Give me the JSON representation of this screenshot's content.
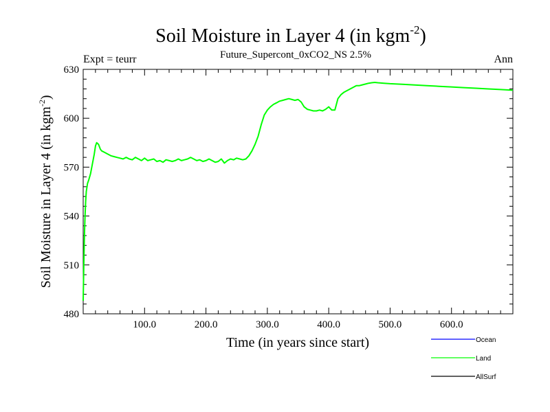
{
  "chart_data": {
    "type": "line",
    "title_main": "Soil Moisture in Layer 4 (in kgm",
    "title_sup": "-2",
    "title_close": ")",
    "subtitle": "Future_Supercont_0xCO2_NS 2.5%",
    "left_label": "Expt = teurr",
    "right_label": "Ann",
    "xlabel": "Time (in years since start)",
    "ylabel_main": "Soil Moisture in Layer 4 (in kgm",
    "ylabel_sup": "-2",
    "ylabel_close": ")",
    "xlim": [
      0,
      700
    ],
    "ylim": [
      480,
      630
    ],
    "x_ticks": [
      100,
      200,
      300,
      400,
      500,
      600
    ],
    "x_tick_labels": [
      "100.0",
      "200.0",
      "300.0",
      "400.0",
      "500.0",
      "600.0"
    ],
    "y_ticks": [
      480,
      510,
      540,
      570,
      600,
      630
    ],
    "y_tick_labels": [
      "480",
      "510",
      "540",
      "570",
      "600",
      "630"
    ],
    "grid": false,
    "legend_position": "bottom-right, below plot",
    "legend": [
      {
        "name": "Ocean",
        "color": "#0000ff"
      },
      {
        "name": "Land",
        "color": "#00ff00"
      },
      {
        "name": "AllSurf",
        "color": "#000000"
      }
    ],
    "series": [
      {
        "name": "Land",
        "color": "#00ff00",
        "x": [
          0,
          1,
          2,
          3,
          4,
          5,
          7,
          9,
          12,
          15,
          18,
          20,
          22,
          25,
          28,
          30,
          35,
          40,
          45,
          50,
          55,
          60,
          65,
          70,
          75,
          80,
          85,
          90,
          95,
          100,
          105,
          110,
          115,
          120,
          125,
          130,
          135,
          140,
          145,
          150,
          155,
          160,
          165,
          170,
          175,
          180,
          185,
          190,
          195,
          200,
          205,
          210,
          215,
          220,
          225,
          230,
          235,
          240,
          245,
          250,
          255,
          260,
          265,
          270,
          275,
          280,
          285,
          290,
          295,
          300,
          305,
          310,
          315,
          320,
          325,
          330,
          335,
          340,
          345,
          350,
          355,
          360,
          365,
          370,
          375,
          380,
          385,
          390,
          395,
          400,
          405,
          410,
          415,
          420,
          425,
          430,
          435,
          440,
          445,
          450,
          455,
          460,
          465,
          470,
          475,
          480,
          490,
          500,
          520,
          540,
          560,
          580,
          600,
          620,
          640,
          660,
          680,
          700
        ],
        "values": [
          488,
          510,
          528,
          540,
          549,
          555,
          560,
          562,
          566,
          572,
          578,
          583,
          585,
          584,
          581,
          580,
          579,
          578,
          577,
          576.5,
          576,
          575.5,
          575,
          576,
          575,
          574.5,
          576,
          575,
          574,
          575.5,
          574,
          574.5,
          575,
          573.5,
          574,
          573,
          574.5,
          574,
          573.5,
          574,
          575,
          574,
          574.5,
          575,
          576,
          575,
          574,
          574.5,
          573.5,
          574,
          575,
          574,
          573,
          573.5,
          575,
          572.5,
          574,
          575,
          574.5,
          575.5,
          575,
          574.5,
          575,
          577,
          580,
          584,
          589,
          596,
          602,
          605,
          607,
          608.5,
          609.5,
          610.5,
          611,
          611.5,
          612,
          611.5,
          611,
          611.5,
          610,
          607,
          605.5,
          605,
          604.5,
          604.5,
          605,
          604.5,
          605.5,
          607,
          605,
          605,
          612,
          614.5,
          616,
          617,
          618,
          619,
          620,
          620,
          620.5,
          621,
          621.5,
          621.8,
          622,
          621.8,
          621.5,
          621.2,
          620.8,
          620.4,
          620,
          619.6,
          619.2,
          618.8,
          618.4,
          618,
          617.6,
          617.2
        ]
      }
    ]
  }
}
